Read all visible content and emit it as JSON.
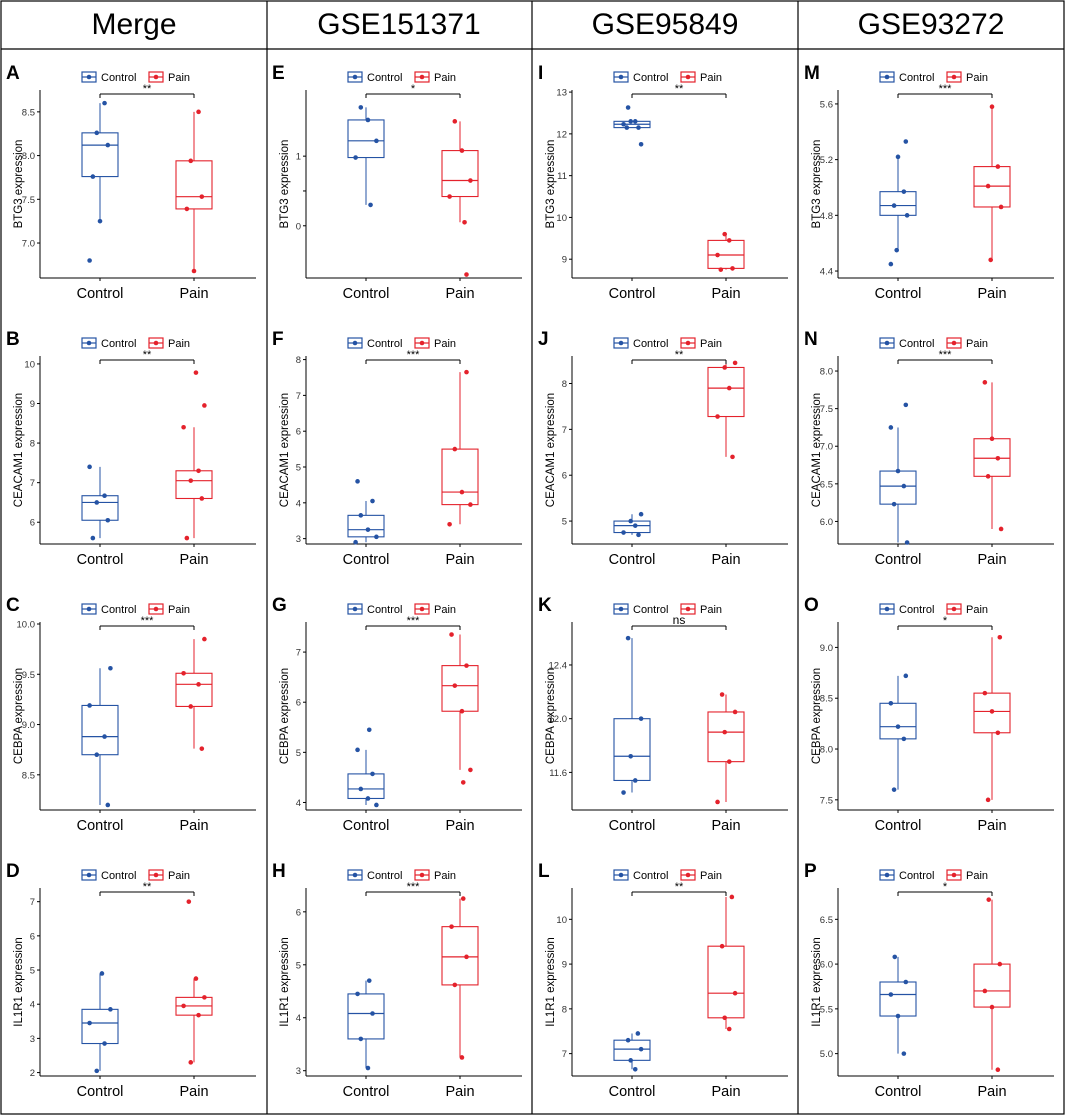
{
  "colors": {
    "control": "#2553a4",
    "pain": "#e4222c",
    "frame": "#000000"
  },
  "columns": [
    "Merge",
    "GSE151371",
    "GSE95849",
    "GSE93272"
  ],
  "legend": {
    "control": "Control",
    "pain": "Pain"
  },
  "chart_data": [
    {
      "type": "box",
      "panel": "A",
      "dataset": "Merge",
      "gene": "BTG3",
      "ylabel": "BTG3 expression",
      "categories": [
        "Control",
        "Pain"
      ],
      "ylim": [
        6.6,
        8.75
      ],
      "yticks": [
        7.0,
        7.5,
        8.0,
        8.5
      ],
      "sig": "**",
      "series": [
        {
          "name": "Control",
          "min": 7.25,
          "q1": 7.76,
          "median": 8.12,
          "q3": 8.26,
          "max": 8.6,
          "outliers": [
            6.8
          ]
        },
        {
          "name": "Pain",
          "min": 6.68,
          "q1": 7.39,
          "median": 7.53,
          "q3": 7.94,
          "max": 8.5
        }
      ]
    },
    {
      "type": "box",
      "panel": "B",
      "dataset": "Merge",
      "gene": "CEACAM1",
      "ylabel": "CEACAM1 expression",
      "categories": [
        "Control",
        "Pain"
      ],
      "ylim": [
        5.45,
        10.2
      ],
      "yticks": [
        6,
        7,
        8,
        9,
        10
      ],
      "sig": "**",
      "series": [
        {
          "name": "Control",
          "min": 5.6,
          "q1": 6.05,
          "median": 6.5,
          "q3": 6.67,
          "max": 7.4
        },
        {
          "name": "Pain",
          "min": 5.6,
          "q1": 6.6,
          "median": 7.05,
          "q3": 7.3,
          "max": 8.4,
          "outliers": [
            8.95,
            9.78
          ]
        }
      ]
    },
    {
      "type": "box",
      "panel": "C",
      "dataset": "Merge",
      "gene": "CEBPA",
      "ylabel": "CEBPA expression",
      "categories": [
        "Control",
        "Pain"
      ],
      "ylim": [
        8.15,
        10.02
      ],
      "yticks": [
        8.5,
        9.0,
        9.5,
        10.0
      ],
      "sig": "***",
      "series": [
        {
          "name": "Control",
          "min": 8.2,
          "q1": 8.7,
          "median": 8.88,
          "q3": 9.19,
          "max": 9.56
        },
        {
          "name": "Pain",
          "min": 8.76,
          "q1": 9.18,
          "median": 9.4,
          "q3": 9.51,
          "max": 9.85
        }
      ]
    },
    {
      "type": "box",
      "panel": "D",
      "dataset": "Merge",
      "gene": "IL1R1",
      "ylabel": "IL1R1 expression",
      "categories": [
        "Control",
        "Pain"
      ],
      "ylim": [
        1.9,
        7.4
      ],
      "yticks": [
        2,
        3,
        4,
        5,
        6,
        7
      ],
      "sig": "**",
      "series": [
        {
          "name": "Control",
          "min": 2.05,
          "q1": 2.85,
          "median": 3.45,
          "q3": 3.85,
          "max": 4.9
        },
        {
          "name": "Pain",
          "min": 2.3,
          "q1": 3.68,
          "median": 3.95,
          "q3": 4.2,
          "max": 4.75,
          "outliers": [
            7.0
          ]
        }
      ]
    },
    {
      "type": "box",
      "panel": "E",
      "dataset": "GSE151371",
      "gene": "BTG3",
      "ylabel": "BTG3 expression",
      "categories": [
        "Control",
        "Pain"
      ],
      "ylim": [
        -0.75,
        1.95
      ],
      "yticks": [
        0,
        0.5,
        1
      ],
      "yticklabels": [
        "0",
        "",
        "1"
      ],
      "sig": "*",
      "series": [
        {
          "name": "Control",
          "min": 0.3,
          "q1": 0.98,
          "median": 1.22,
          "q3": 1.52,
          "max": 1.7
        },
        {
          "name": "Pain",
          "min": 0.05,
          "q1": 0.42,
          "median": 0.65,
          "q3": 1.08,
          "max": 1.5,
          "outliers": [
            -0.7
          ]
        }
      ]
    },
    {
      "type": "box",
      "panel": "F",
      "dataset": "GSE151371",
      "gene": "CEACAM1",
      "ylabel": "CEACAM1 expression",
      "categories": [
        "Control",
        "Pain"
      ],
      "ylim": [
        2.85,
        8.1
      ],
      "yticks": [
        3,
        4,
        5,
        6,
        7,
        8
      ],
      "sig": "***",
      "series": [
        {
          "name": "Control",
          "min": 2.9,
          "q1": 3.05,
          "median": 3.25,
          "q3": 3.65,
          "max": 4.05,
          "outliers": [
            4.6
          ]
        },
        {
          "name": "Pain",
          "min": 3.4,
          "q1": 3.95,
          "median": 4.3,
          "q3": 5.5,
          "max": 7.65
        }
      ]
    },
    {
      "type": "box",
      "panel": "G",
      "dataset": "GSE151371",
      "gene": "CEBPA",
      "ylabel": "CEBPA expression",
      "categories": [
        "Control",
        "Pain"
      ],
      "ylim": [
        3.85,
        7.6
      ],
      "yticks": [
        4,
        5,
        6,
        7
      ],
      "sig": "***",
      "series": [
        {
          "name": "Control",
          "min": 3.95,
          "q1": 4.08,
          "median": 4.27,
          "q3": 4.57,
          "max": 5.05,
          "outliers": [
            5.45
          ]
        },
        {
          "name": "Pain",
          "min": 4.65,
          "q1": 5.82,
          "median": 6.33,
          "q3": 6.73,
          "max": 7.35,
          "outliers": [
            4.4
          ]
        }
      ]
    },
    {
      "type": "box",
      "panel": "H",
      "dataset": "GSE151371",
      "gene": "IL1R1",
      "ylabel": "IL1R1 expression",
      "categories": [
        "Control",
        "Pain"
      ],
      "ylim": [
        2.9,
        6.45
      ],
      "yticks": [
        3,
        4,
        5,
        6
      ],
      "sig": "***",
      "series": [
        {
          "name": "Control",
          "min": 3.05,
          "q1": 3.6,
          "median": 4.08,
          "q3": 4.45,
          "max": 4.7
        },
        {
          "name": "Pain",
          "min": 3.25,
          "q1": 4.62,
          "median": 5.15,
          "q3": 5.72,
          "max": 6.25
        }
      ]
    },
    {
      "type": "box",
      "panel": "I",
      "dataset": "GSE95849",
      "gene": "BTG3",
      "ylabel": "BTG3 expression",
      "categories": [
        "Control",
        "Pain"
      ],
      "ylim": [
        8.55,
        13.05
      ],
      "yticks": [
        9,
        10,
        11,
        12,
        13
      ],
      "sig": "**",
      "series": [
        {
          "name": "Control",
          "min": 12.15,
          "q1": 12.15,
          "median": 12.23,
          "q3": 12.3,
          "max": 12.3,
          "outliers": [
            11.75,
            12.63
          ]
        },
        {
          "name": "Pain",
          "min": 8.75,
          "q1": 8.78,
          "median": 9.1,
          "q3": 9.45,
          "max": 9.6
        }
      ]
    },
    {
      "type": "box",
      "panel": "J",
      "dataset": "GSE95849",
      "gene": "CEACAM1",
      "ylabel": "CEACAM1 expression",
      "categories": [
        "Control",
        "Pain"
      ],
      "ylim": [
        4.5,
        8.6
      ],
      "yticks": [
        5,
        6,
        7,
        8
      ],
      "sig": "**",
      "series": [
        {
          "name": "Control",
          "min": 4.7,
          "q1": 4.75,
          "median": 4.9,
          "q3": 5.0,
          "max": 5.15
        },
        {
          "name": "Pain",
          "min": 6.4,
          "q1": 7.28,
          "median": 7.9,
          "q3": 8.35,
          "max": 8.45
        }
      ]
    },
    {
      "type": "box",
      "panel": "K",
      "dataset": "GSE95849",
      "gene": "CEBPA",
      "ylabel": "CEBPA expression",
      "categories": [
        "Control",
        "Pain"
      ],
      "ylim": [
        11.32,
        12.72
      ],
      "yticks": [
        11.6,
        12.0,
        12.4
      ],
      "sig": "ns",
      "series": [
        {
          "name": "Control",
          "min": 11.45,
          "q1": 11.54,
          "median": 11.72,
          "q3": 12.0,
          "max": 12.6
        },
        {
          "name": "Pain",
          "min": 11.38,
          "q1": 11.68,
          "median": 11.9,
          "q3": 12.05,
          "max": 12.18
        }
      ]
    },
    {
      "type": "box",
      "panel": "L",
      "dataset": "GSE95849",
      "gene": "IL1R1",
      "ylabel": "IL1R1 expression",
      "categories": [
        "Control",
        "Pain"
      ],
      "ylim": [
        6.5,
        10.7
      ],
      "yticks": [
        7,
        8,
        9,
        10
      ],
      "sig": "**",
      "series": [
        {
          "name": "Control",
          "min": 6.65,
          "q1": 6.85,
          "median": 7.1,
          "q3": 7.3,
          "max": 7.45
        },
        {
          "name": "Pain",
          "min": 7.55,
          "q1": 7.8,
          "median": 8.35,
          "q3": 9.4,
          "max": 10.5
        }
      ]
    },
    {
      "type": "box",
      "panel": "M",
      "dataset": "GSE93272",
      "gene": "BTG3",
      "ylabel": "BTG3 expression",
      "categories": [
        "Control",
        "Pain"
      ],
      "ylim": [
        4.35,
        5.7
      ],
      "yticks": [
        4.4,
        4.8,
        5.2,
        5.6
      ],
      "sig": "***",
      "series": [
        {
          "name": "Control",
          "min": 4.55,
          "q1": 4.8,
          "median": 4.87,
          "q3": 4.97,
          "max": 5.22,
          "outliers": [
            4.45,
            5.33
          ]
        },
        {
          "name": "Pain",
          "min": 4.48,
          "q1": 4.86,
          "median": 5.01,
          "q3": 5.15,
          "max": 5.58
        }
      ]
    },
    {
      "type": "box",
      "panel": "N",
      "dataset": "GSE93272",
      "gene": "CEACAM1",
      "ylabel": "CEACAM1 expression",
      "categories": [
        "Control",
        "Pain"
      ],
      "ylim": [
        5.7,
        8.2
      ],
      "yticks": [
        6.0,
        6.5,
        7.0,
        7.5,
        8.0
      ],
      "sig": "***",
      "series": [
        {
          "name": "Control",
          "min": 5.72,
          "q1": 6.23,
          "median": 6.47,
          "q3": 6.67,
          "max": 7.25,
          "outliers": [
            7.55
          ]
        },
        {
          "name": "Pain",
          "min": 5.9,
          "q1": 6.6,
          "median": 6.84,
          "q3": 7.1,
          "max": 7.85
        }
      ]
    },
    {
      "type": "box",
      "panel": "O",
      "dataset": "GSE93272",
      "gene": "CEBPA",
      "ylabel": "CEBPA expression",
      "categories": [
        "Control",
        "Pain"
      ],
      "ylim": [
        7.4,
        9.25
      ],
      "yticks": [
        7.5,
        8.0,
        8.5,
        9.0
      ],
      "sig": "*",
      "series": [
        {
          "name": "Control",
          "min": 7.6,
          "q1": 8.1,
          "median": 8.22,
          "q3": 8.45,
          "max": 8.72
        },
        {
          "name": "Pain",
          "min": 7.5,
          "q1": 8.16,
          "median": 8.37,
          "q3": 8.55,
          "max": 9.1
        }
      ]
    },
    {
      "type": "box",
      "panel": "P",
      "dataset": "GSE93272",
      "gene": "IL1R1",
      "ylabel": "IL1R1 expression",
      "categories": [
        "Control",
        "Pain"
      ],
      "ylim": [
        4.75,
        6.85
      ],
      "yticks": [
        5.0,
        5.5,
        6.0,
        6.5
      ],
      "sig": "*",
      "series": [
        {
          "name": "Control",
          "min": 5.0,
          "q1": 5.42,
          "median": 5.66,
          "q3": 5.8,
          "max": 6.08
        },
        {
          "name": "Pain",
          "min": 4.82,
          "q1": 5.52,
          "median": 5.7,
          "q3": 6.0,
          "max": 6.72
        }
      ]
    }
  ]
}
